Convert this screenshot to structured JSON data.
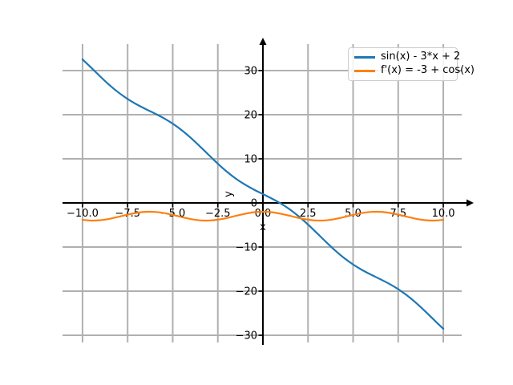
{
  "figure": {
    "background": "#ffffff"
  },
  "chart_data": {
    "type": "line",
    "title": "",
    "xlabel": "x",
    "ylabel": "y",
    "xlim": [
      -11.02,
      11.02
    ],
    "ylim": [
      -31.64,
      36.0
    ],
    "grid": true,
    "grid_color": "#b0b0b0",
    "axis_color": "#000000",
    "legend_position": "upper right",
    "x_ticks": [
      -10,
      -7.5,
      -5,
      -2.5,
      0,
      2.5,
      5,
      7.5,
      10
    ],
    "x_tick_labels": [
      "−10.0",
      "−7.5",
      "−5.0",
      "−2.5",
      "0.0",
      "2.5",
      "5.0",
      "7.5",
      "10.0"
    ],
    "y_ticks": [
      -30,
      -20,
      -10,
      0,
      10,
      20,
      30
    ],
    "y_tick_labels": [
      "−30",
      "−20",
      "−10",
      "0",
      "10",
      "20",
      "30"
    ],
    "x": [
      -10,
      -9.5,
      -9,
      -8.5,
      -8,
      -7.5,
      -7,
      -6.5,
      -6,
      -5.5,
      -5,
      -4.5,
      -4,
      -3.5,
      -3,
      -2.5,
      -2,
      -1.5,
      -1,
      -0.5,
      0,
      0.5,
      1,
      1.5,
      2,
      2.5,
      3,
      3.5,
      4,
      4.5,
      5,
      5.5,
      6,
      6.5,
      7,
      7.5,
      8,
      8.5,
      9,
      9.5,
      10
    ],
    "series": [
      {
        "name": "sin(x) - 3*x + 2",
        "color": "#1f77b4",
        "values": [
          32.54,
          30.58,
          28.59,
          26.7,
          25.01,
          23.56,
          22.34,
          21.28,
          20.28,
          19.21,
          17.96,
          16.48,
          14.76,
          12.85,
          10.86,
          8.9,
          7.09,
          5.5,
          4.16,
          3.02,
          2.0,
          0.98,
          -0.16,
          -1.5,
          -3.09,
          -4.9,
          -6.86,
          -8.85,
          -10.76,
          -12.48,
          -13.96,
          -15.21,
          -16.28,
          -17.28,
          -18.34,
          -19.56,
          -21.01,
          -22.7,
          -24.59,
          -26.58,
          -28.54
        ]
      },
      {
        "name": "f'(x) = -3 + cos(x)",
        "color": "#ff7f0e",
        "values": [
          -3.84,
          -4.0,
          -3.91,
          -3.6,
          -3.15,
          -2.65,
          -2.25,
          -2.02,
          -2.04,
          -2.29,
          -2.72,
          -3.21,
          -3.65,
          -3.94,
          -3.99,
          -3.8,
          -3.42,
          -2.93,
          -2.46,
          -2.12,
          -2.0,
          -2.12,
          -2.46,
          -2.93,
          -3.42,
          -3.8,
          -3.99,
          -3.94,
          -3.65,
          -3.21,
          -2.72,
          -2.29,
          -2.04,
          -2.02,
          -2.25,
          -2.65,
          -3.15,
          -3.6,
          -3.91,
          -4.0,
          -3.84
        ]
      }
    ]
  }
}
